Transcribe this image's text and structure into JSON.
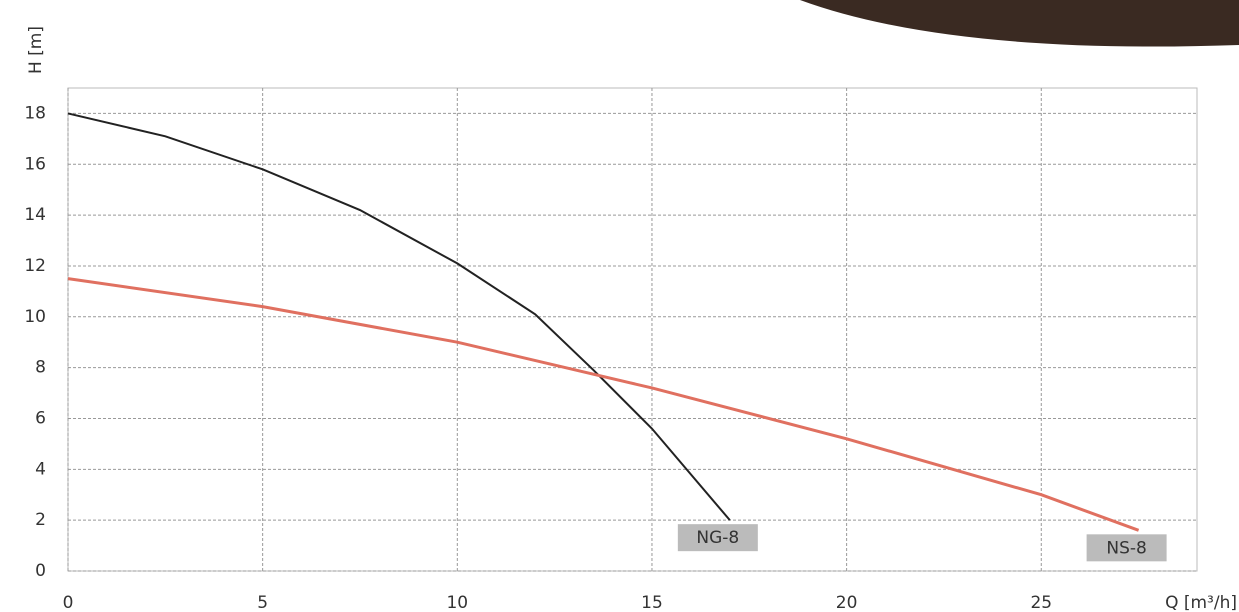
{
  "chart_data": {
    "type": "line",
    "x_label": "Q [m³/h]",
    "y_label": "H [m]",
    "xlim": [
      0,
      29
    ],
    "ylim": [
      0,
      19
    ],
    "xticks": [
      0,
      5,
      10,
      15,
      20,
      25
    ],
    "yticks": [
      0,
      2,
      4,
      6,
      8,
      10,
      12,
      14,
      16,
      18
    ],
    "grid": true,
    "series": [
      {
        "name": "NG-8",
        "color": "#222222",
        "x": [
          0,
          2.5,
          5,
          7.5,
          10,
          12,
          13.5,
          15,
          17
        ],
        "values": [
          18,
          17.1,
          15.8,
          14.2,
          12.1,
          10.1,
          7.9,
          5.6,
          2.0
        ]
      },
      {
        "name": "NS-8",
        "color": "#e07060",
        "x": [
          0,
          5,
          10,
          15,
          20,
          25,
          27.5
        ],
        "values": [
          11.5,
          10.4,
          9.0,
          7.2,
          5.2,
          3.0,
          1.6
        ]
      }
    ]
  }
}
